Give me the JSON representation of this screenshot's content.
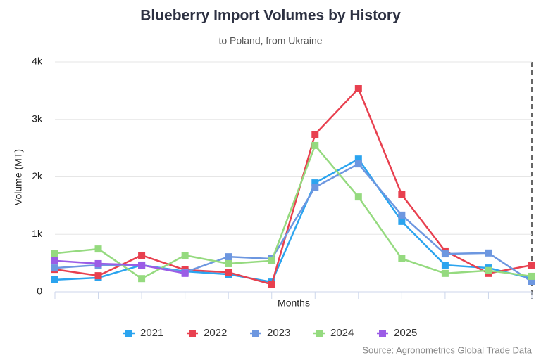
{
  "chart_data": {
    "type": "line",
    "title": "Blueberry Import Volumes by History",
    "subtitle": "to Poland, from Ukraine",
    "x_label": "Months",
    "y_label": "Volume (MT)",
    "source": "Source: Agronometrics Global Trade Data",
    "categories": [
      null,
      null,
      null,
      null,
      null,
      null,
      null,
      null,
      null,
      null,
      null,
      null
    ],
    "ylim": [
      0,
      4000
    ],
    "yticks": [
      0,
      {
        "value": 1000,
        "label": "1k"
      },
      {
        "value": 2000,
        "label": "2k"
      },
      {
        "value": 3000,
        "label": "3k"
      },
      {
        "value": 4000,
        "label": "4k"
      }
    ],
    "grid": true,
    "legend": "bottom",
    "series": [
      {
        "name": "2021",
        "color": "#2ba4ef",
        "values": [
          210,
          245,
          465,
          355,
          305,
          170,
          1895,
          2310,
          1225,
          465,
          415,
          230
        ]
      },
      {
        "name": "2022",
        "color": "#e8404f",
        "values": [
          390,
          280,
          635,
          380,
          340,
          130,
          2740,
          3535,
          1690,
          710,
          320,
          465
        ]
      },
      {
        "name": "2023",
        "color": "#6d97e0",
        "values": [
          415,
          465,
          465,
          340,
          610,
          575,
          1820,
          2225,
          1335,
          660,
          675,
          175
        ]
      },
      {
        "name": "2024",
        "color": "#95da7f",
        "values": [
          670,
          745,
          230,
          635,
          490,
          540,
          2545,
          1650,
          575,
          320,
          370,
          270
        ]
      },
      {
        "name": "2025",
        "color": "#9b5ce6",
        "values": [
          540,
          490,
          465,
          320,
          null,
          null,
          null,
          null,
          null,
          null,
          null,
          null
        ]
      }
    ]
  }
}
